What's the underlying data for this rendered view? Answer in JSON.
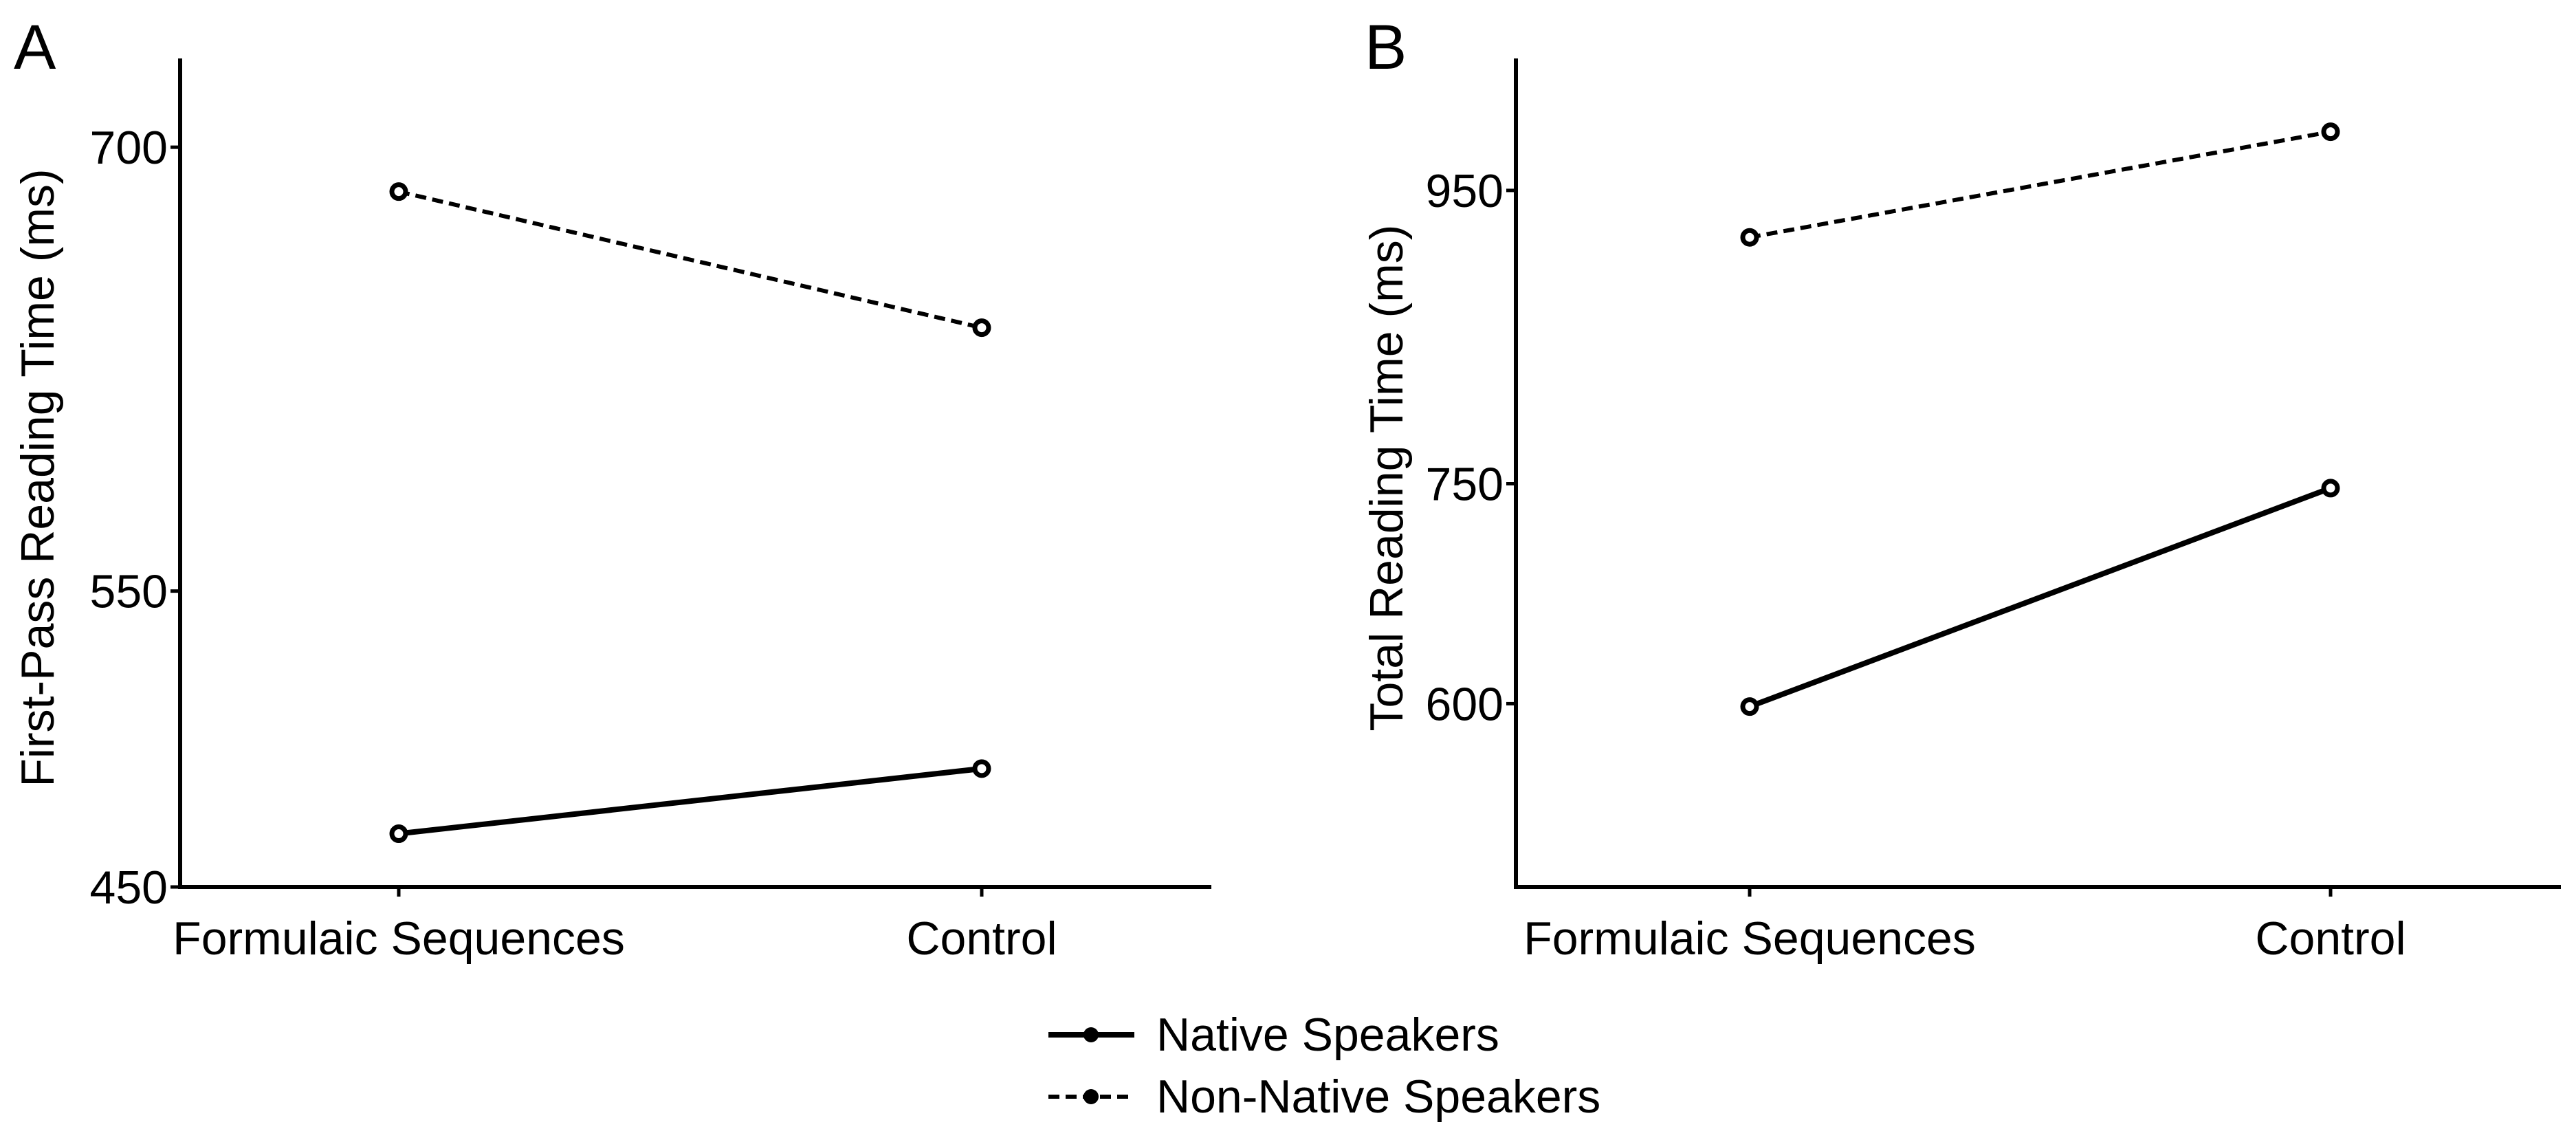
{
  "colors": {
    "line": "#000000",
    "background": "#ffffff"
  },
  "legend": {
    "placement": "bottom-center",
    "entries": [
      {
        "label": "Native Speakers",
        "style": "solid"
      },
      {
        "label": "Non-Native Speakers",
        "style": "dashed"
      }
    ]
  },
  "chart_data": [
    {
      "panel": "A",
      "type": "line",
      "categories": [
        "Formulaic Sequences",
        "Control"
      ],
      "xlabel": "",
      "ylabel": "First-Pass Reading Time (ms)",
      "ylim": [
        450,
        730
      ],
      "yticks": [
        450,
        550,
        700
      ],
      "ytick_labels": [
        "450",
        "550",
        "700"
      ],
      "grid": false,
      "series": [
        {
          "name": "Native Speakers",
          "style": "solid",
          "values": [
            468,
            490
          ]
        },
        {
          "name": "Non-Native Speakers",
          "style": "dashed",
          "values": [
            685,
            639
          ]
        }
      ]
    },
    {
      "panel": "B",
      "type": "line",
      "categories": [
        "Formulaic Sequences",
        "Control"
      ],
      "xlabel": "",
      "ylabel": "Total Reading Time (ms)",
      "ylim": [
        475,
        1040
      ],
      "yticks": [
        600,
        750,
        950
      ],
      "ytick_labels": [
        "600",
        "750",
        "950"
      ],
      "grid": false,
      "series": [
        {
          "name": "Native Speakers",
          "style": "solid",
          "values": [
            598,
            747
          ]
        },
        {
          "name": "Non-Native Speakers",
          "style": "dashed",
          "values": [
            918,
            990
          ]
        }
      ]
    }
  ]
}
